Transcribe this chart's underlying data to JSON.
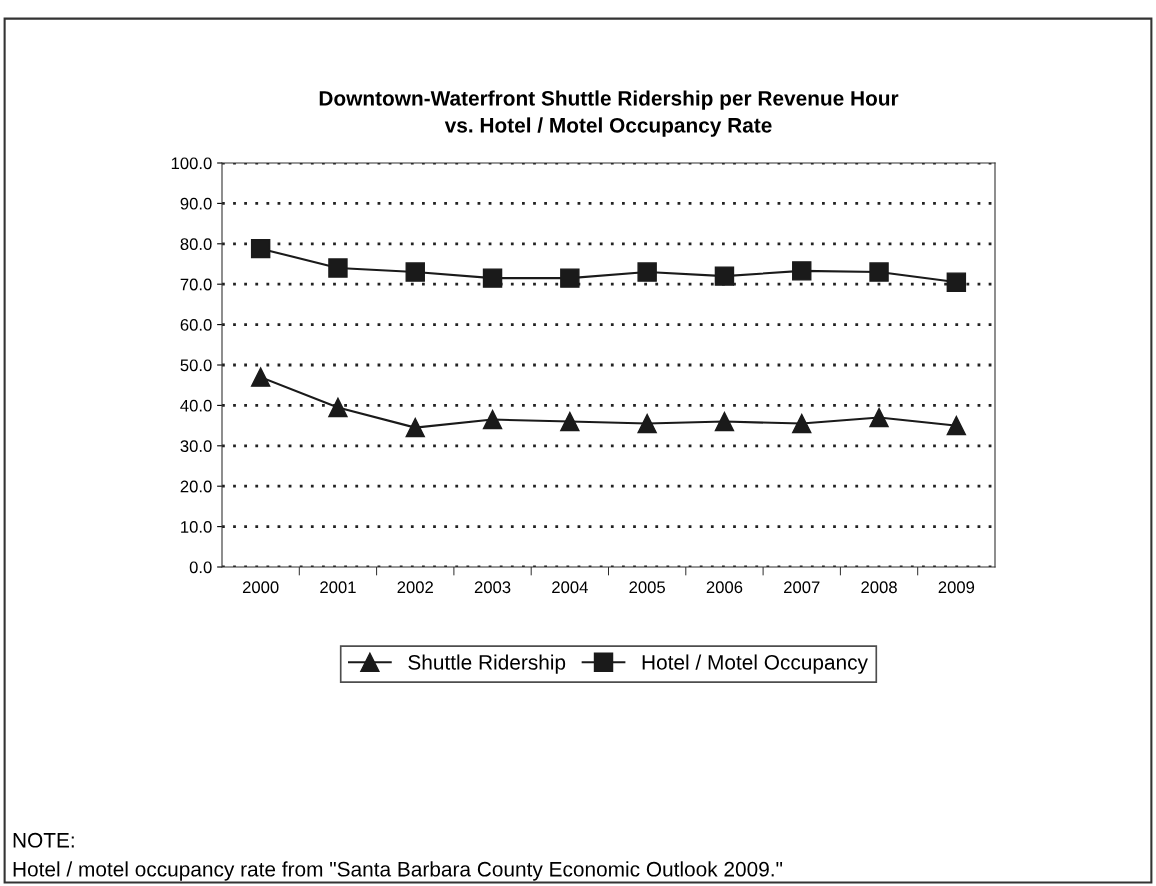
{
  "chart_data": {
    "type": "line",
    "title": "Downtown-Waterfront Shuttle Ridership per Revenue Hour\nvs. Hotel / Motel Occupancy Rate",
    "categories": [
      "2000",
      "2001",
      "2002",
      "2003",
      "2004",
      "2005",
      "2006",
      "2007",
      "2008",
      "2009"
    ],
    "series": [
      {
        "name": "Shuttle Ridership",
        "color": "#1a1a1a",
        "marker": "triangle",
        "values": [
          47.0,
          39.5,
          34.5,
          36.5,
          36.0,
          35.5,
          36.0,
          35.5,
          37.0,
          35.0
        ]
      },
      {
        "name": "Hotel / Motel Occupancy",
        "color": "#1a1a1a",
        "marker": "square",
        "values": [
          78.8,
          74.0,
          73.0,
          71.5,
          71.5,
          73.0,
          72.0,
          73.3,
          73.0,
          70.5
        ]
      }
    ],
    "ylim": [
      0,
      100
    ],
    "yticks": [
      {
        "value": 0,
        "label": "0.0"
      },
      {
        "value": 10,
        "label": "10.0"
      },
      {
        "value": 20,
        "label": "20.0"
      },
      {
        "value": 30,
        "label": "30.0"
      },
      {
        "value": 40,
        "label": "40.0"
      },
      {
        "value": 50,
        "label": "50.0"
      },
      {
        "value": 60,
        "label": "60.0"
      },
      {
        "value": 70,
        "label": "70.0"
      },
      {
        "value": 80,
        "label": "80.0"
      },
      {
        "value": 90,
        "label": "90.0"
      },
      {
        "value": 100,
        "label": "100.0"
      }
    ],
    "grid": "y",
    "line_style": "solid",
    "legend": "bottom",
    "annotations": [
      "NOTE:",
      "Hotel / motel occupancy rate from \"Santa Barbara County Economic Outlook 2009.\""
    ]
  }
}
